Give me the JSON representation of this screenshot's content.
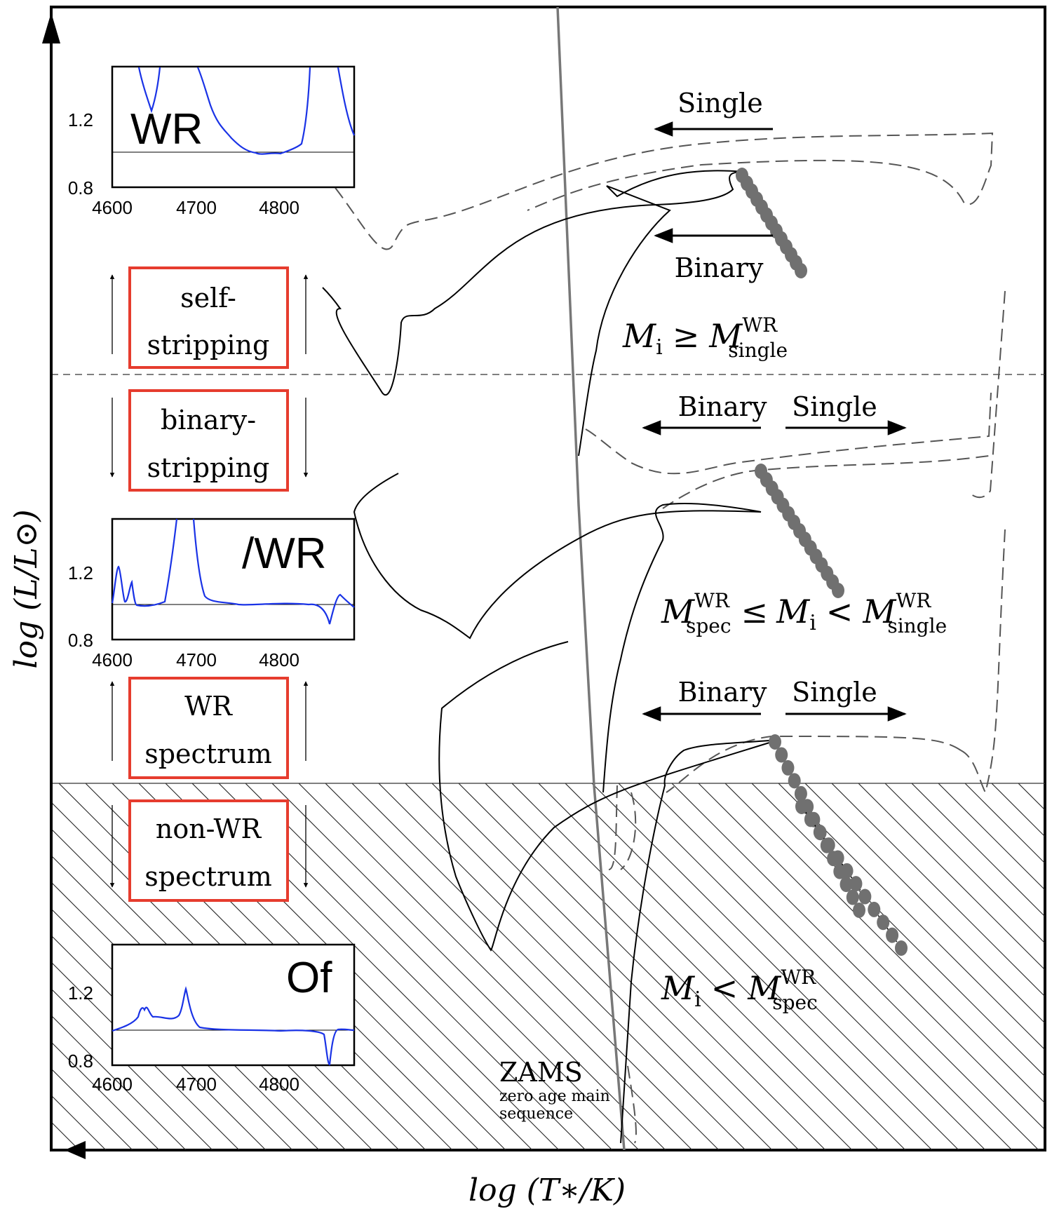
{
  "axes": {
    "xlabel": "log (T∗/K)",
    "ylabel": "log (L/L⊙)"
  },
  "regions": {
    "top": {
      "mi": "M",
      "sub_i": "i",
      "rel": "≥",
      "m": "M",
      "sup": "WR",
      "sub": "single"
    },
    "middle": {
      "m1": "M",
      "sup1": "WR",
      "sub1": "spec",
      "rel1": "≤",
      "mi": "M",
      "sub_i": "i",
      "rel2": "<",
      "m2": "M",
      "sup2": "WR",
      "sub2": "single"
    },
    "bottom": {
      "mi": "M",
      "sub_i": "i",
      "rel": "<",
      "m": "M",
      "sup": "WR",
      "sub": "spec"
    }
  },
  "arrows": {
    "top_single": "Single",
    "top_binary": "Binary",
    "mid_binary": "Binary",
    "mid_single": "Single",
    "low_binary": "Binary",
    "low_single": "Single"
  },
  "boxes": [
    {
      "line1": "self-",
      "line2": "stripping"
    },
    {
      "line1": "binary-",
      "line2": "stripping"
    },
    {
      "line1": "WR",
      "line2": "spectrum"
    },
    {
      "line1": "non-WR",
      "line2": "spectrum"
    }
  ],
  "spectra": [
    {
      "label": "WR",
      "yticks": [
        "1.2",
        "0.8"
      ],
      "xticks": [
        "4600",
        "4700",
        "4800"
      ]
    },
    {
      "label": "/WR",
      "yticks": [
        "1.2",
        "0.8"
      ],
      "xticks": [
        "4600",
        "4700",
        "4800"
      ]
    },
    {
      "label": "Of",
      "yticks": [
        "1.2",
        "0.8"
      ],
      "xticks": [
        "4600",
        "4700",
        "4800"
      ]
    }
  ],
  "zams": {
    "title": "ZAMS",
    "line1": "zero age main",
    "line2": "sequence"
  },
  "colors": {
    "box_border": "#e63c2e",
    "spectrum_line": "#1a33e6",
    "zams_line": "#777777",
    "dots": "#707070"
  }
}
